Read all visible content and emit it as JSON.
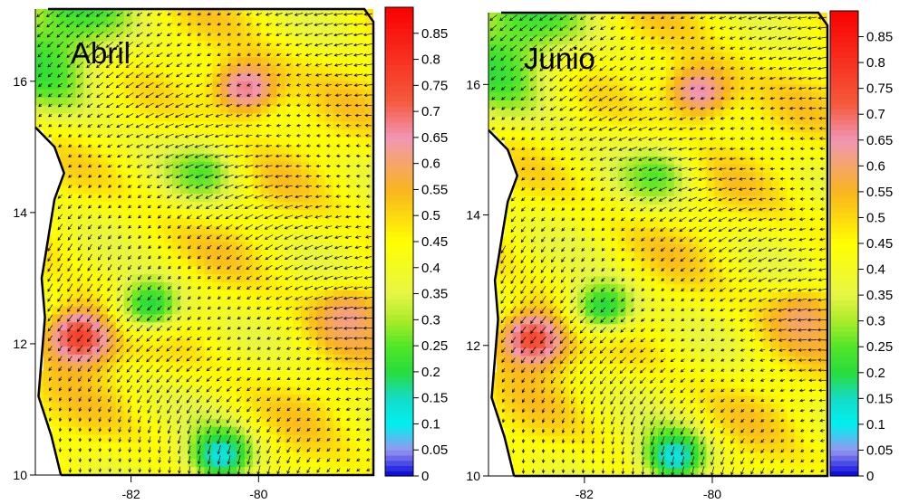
{
  "chart_data": [
    {
      "type": "heatmap",
      "title": "Abril",
      "xlabel": "",
      "ylabel": "",
      "xlim": [
        -83.5,
        -78.2
      ],
      "ylim": [
        10,
        17.1
      ],
      "x_ticks": [
        -82,
        -80
      ],
      "y_ticks": [
        10,
        12,
        14,
        16
      ],
      "colorbar": {
        "min": 0,
        "max": 0.9,
        "ticks": [
          0,
          0.05,
          0.1,
          0.15,
          0.2,
          0.25,
          0.3,
          0.35,
          0.4,
          0.45,
          0.5,
          0.55,
          0.6,
          0.65,
          0.7,
          0.75,
          0.8,
          0.85
        ]
      },
      "overlay": "vector-arrows",
      "features": [
        {
          "kind": "max",
          "x": -80.2,
          "y": 15.9,
          "value": 0.68
        },
        {
          "kind": "max",
          "x": -82.8,
          "y": 12.1,
          "value": 0.78
        },
        {
          "kind": "min",
          "x": -80.9,
          "y": 14.6,
          "value": 0.25
        },
        {
          "kind": "min",
          "x": -81.7,
          "y": 12.6,
          "value": 0.2
        },
        {
          "kind": "min",
          "x": -80.6,
          "y": 10.3,
          "value": 0.12
        },
        {
          "kind": "max",
          "x": -78.6,
          "y": 12.4,
          "value": 0.62
        }
      ]
    },
    {
      "type": "heatmap",
      "title": "Junio",
      "xlabel": "",
      "ylabel": "",
      "xlim": [
        -83.5,
        -78.2
      ],
      "ylim": [
        10,
        17.1
      ],
      "x_ticks": [
        -82,
        -80
      ],
      "y_ticks": [
        10,
        12,
        14,
        16
      ],
      "colorbar": {
        "min": 0,
        "max": 0.9,
        "ticks": [
          0,
          0.05,
          0.1,
          0.15,
          0.2,
          0.25,
          0.3,
          0.35,
          0.4,
          0.45,
          0.5,
          0.55,
          0.6,
          0.65,
          0.7,
          0.75,
          0.8,
          0.85
        ]
      },
      "overlay": "vector-arrows",
      "features": [
        {
          "kind": "max",
          "x": -80.2,
          "y": 15.9,
          "value": 0.66
        },
        {
          "kind": "max",
          "x": -82.8,
          "y": 12.1,
          "value": 0.76
        },
        {
          "kind": "min",
          "x": -80.9,
          "y": 14.6,
          "value": 0.25
        },
        {
          "kind": "min",
          "x": -81.7,
          "y": 12.6,
          "value": 0.2
        },
        {
          "kind": "min",
          "x": -80.6,
          "y": 10.3,
          "value": 0.12
        },
        {
          "kind": "max",
          "x": -78.6,
          "y": 12.4,
          "value": 0.6
        }
      ]
    }
  ]
}
